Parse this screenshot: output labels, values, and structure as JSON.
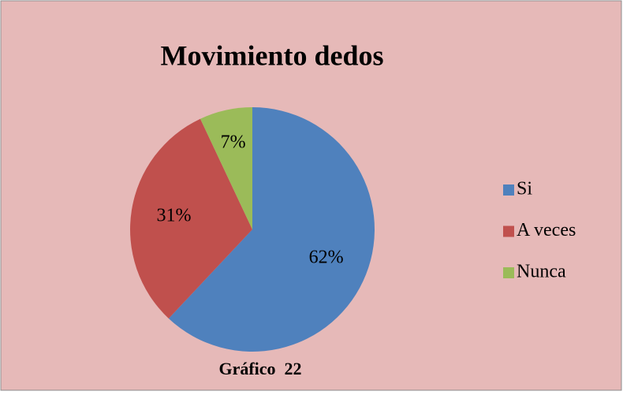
{
  "chart_data": {
    "type": "pie",
    "title": "Movimiento dedos",
    "categories": [
      "Si",
      "A veces",
      "Nunca"
    ],
    "values": [
      62,
      31,
      7
    ],
    "value_labels": [
      "62%",
      "31%",
      "7%"
    ],
    "colors": [
      "#4f81bd",
      "#c0504d",
      "#9bbb59"
    ],
    "legend": "right"
  },
  "caption": "Gráfico  22"
}
